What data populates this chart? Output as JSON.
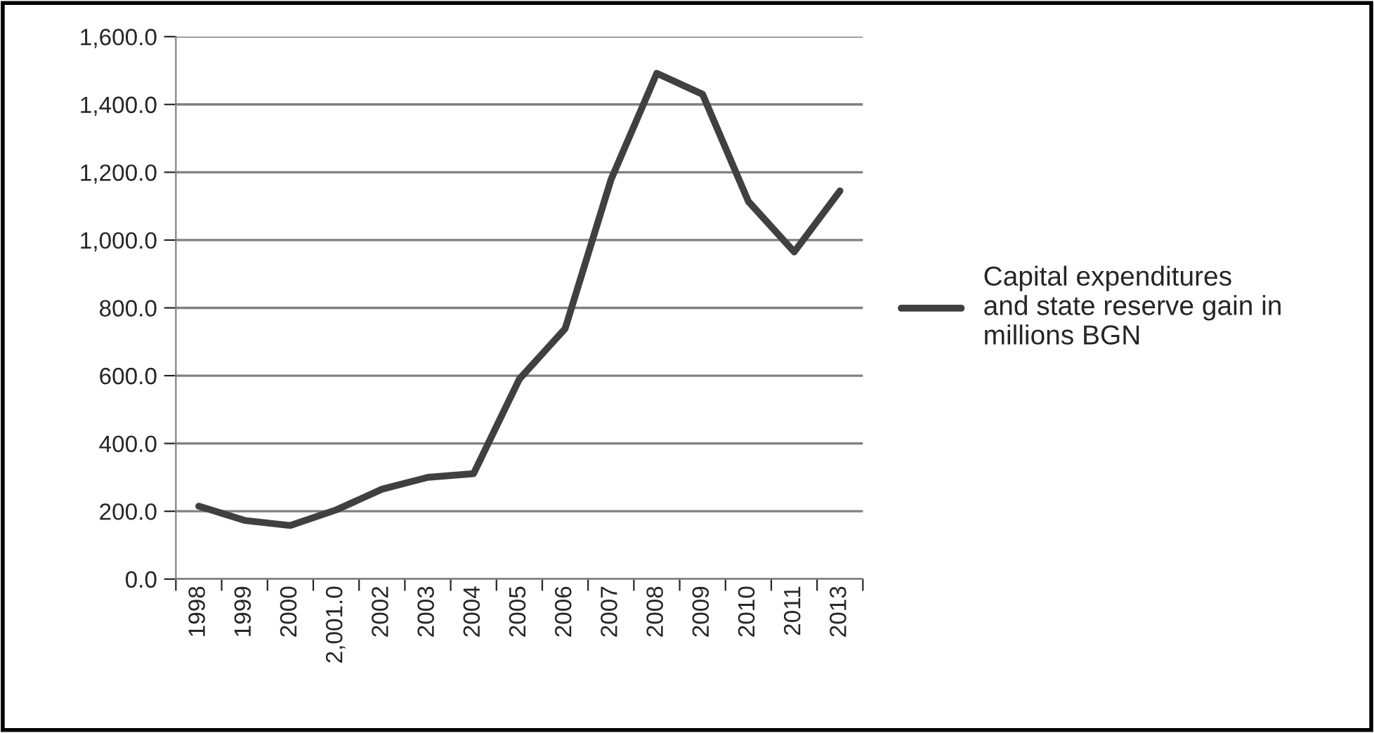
{
  "chart_data": {
    "type": "line",
    "categories": [
      "1998",
      "1999",
      "2000",
      "2,001.0",
      "2002",
      "2003",
      "2004",
      "2005",
      "2006",
      "2007",
      "2008",
      "2009",
      "2010",
      "2011",
      "2013"
    ],
    "series": [
      {
        "name": "Capital expenditures\nand state reserve gain in\nmillions BGN",
        "color": "#404040",
        "values": [
          215,
          173,
          158,
          204,
          265,
          300,
          311,
          590,
          739,
          1178,
          1492,
          1430,
          1114,
          965,
          1145
        ]
      }
    ],
    "ylim": [
      0,
      1600
    ],
    "yticks": [
      {
        "value": 0,
        "label": "0.0"
      },
      {
        "value": 200,
        "label": "200.0"
      },
      {
        "value": 400,
        "label": "400.0"
      },
      {
        "value": 600,
        "label": "600.0"
      },
      {
        "value": 800,
        "label": "800.0"
      },
      {
        "value": 1000,
        "label": "1,000.0"
      },
      {
        "value": 1200,
        "label": "1,200.0"
      },
      {
        "value": 1400,
        "label": "1,400.0"
      },
      {
        "value": 1600,
        "label": "1,600.0"
      }
    ],
    "grid": "y",
    "legend": "right",
    "marker": "none",
    "line_style": "solid"
  }
}
